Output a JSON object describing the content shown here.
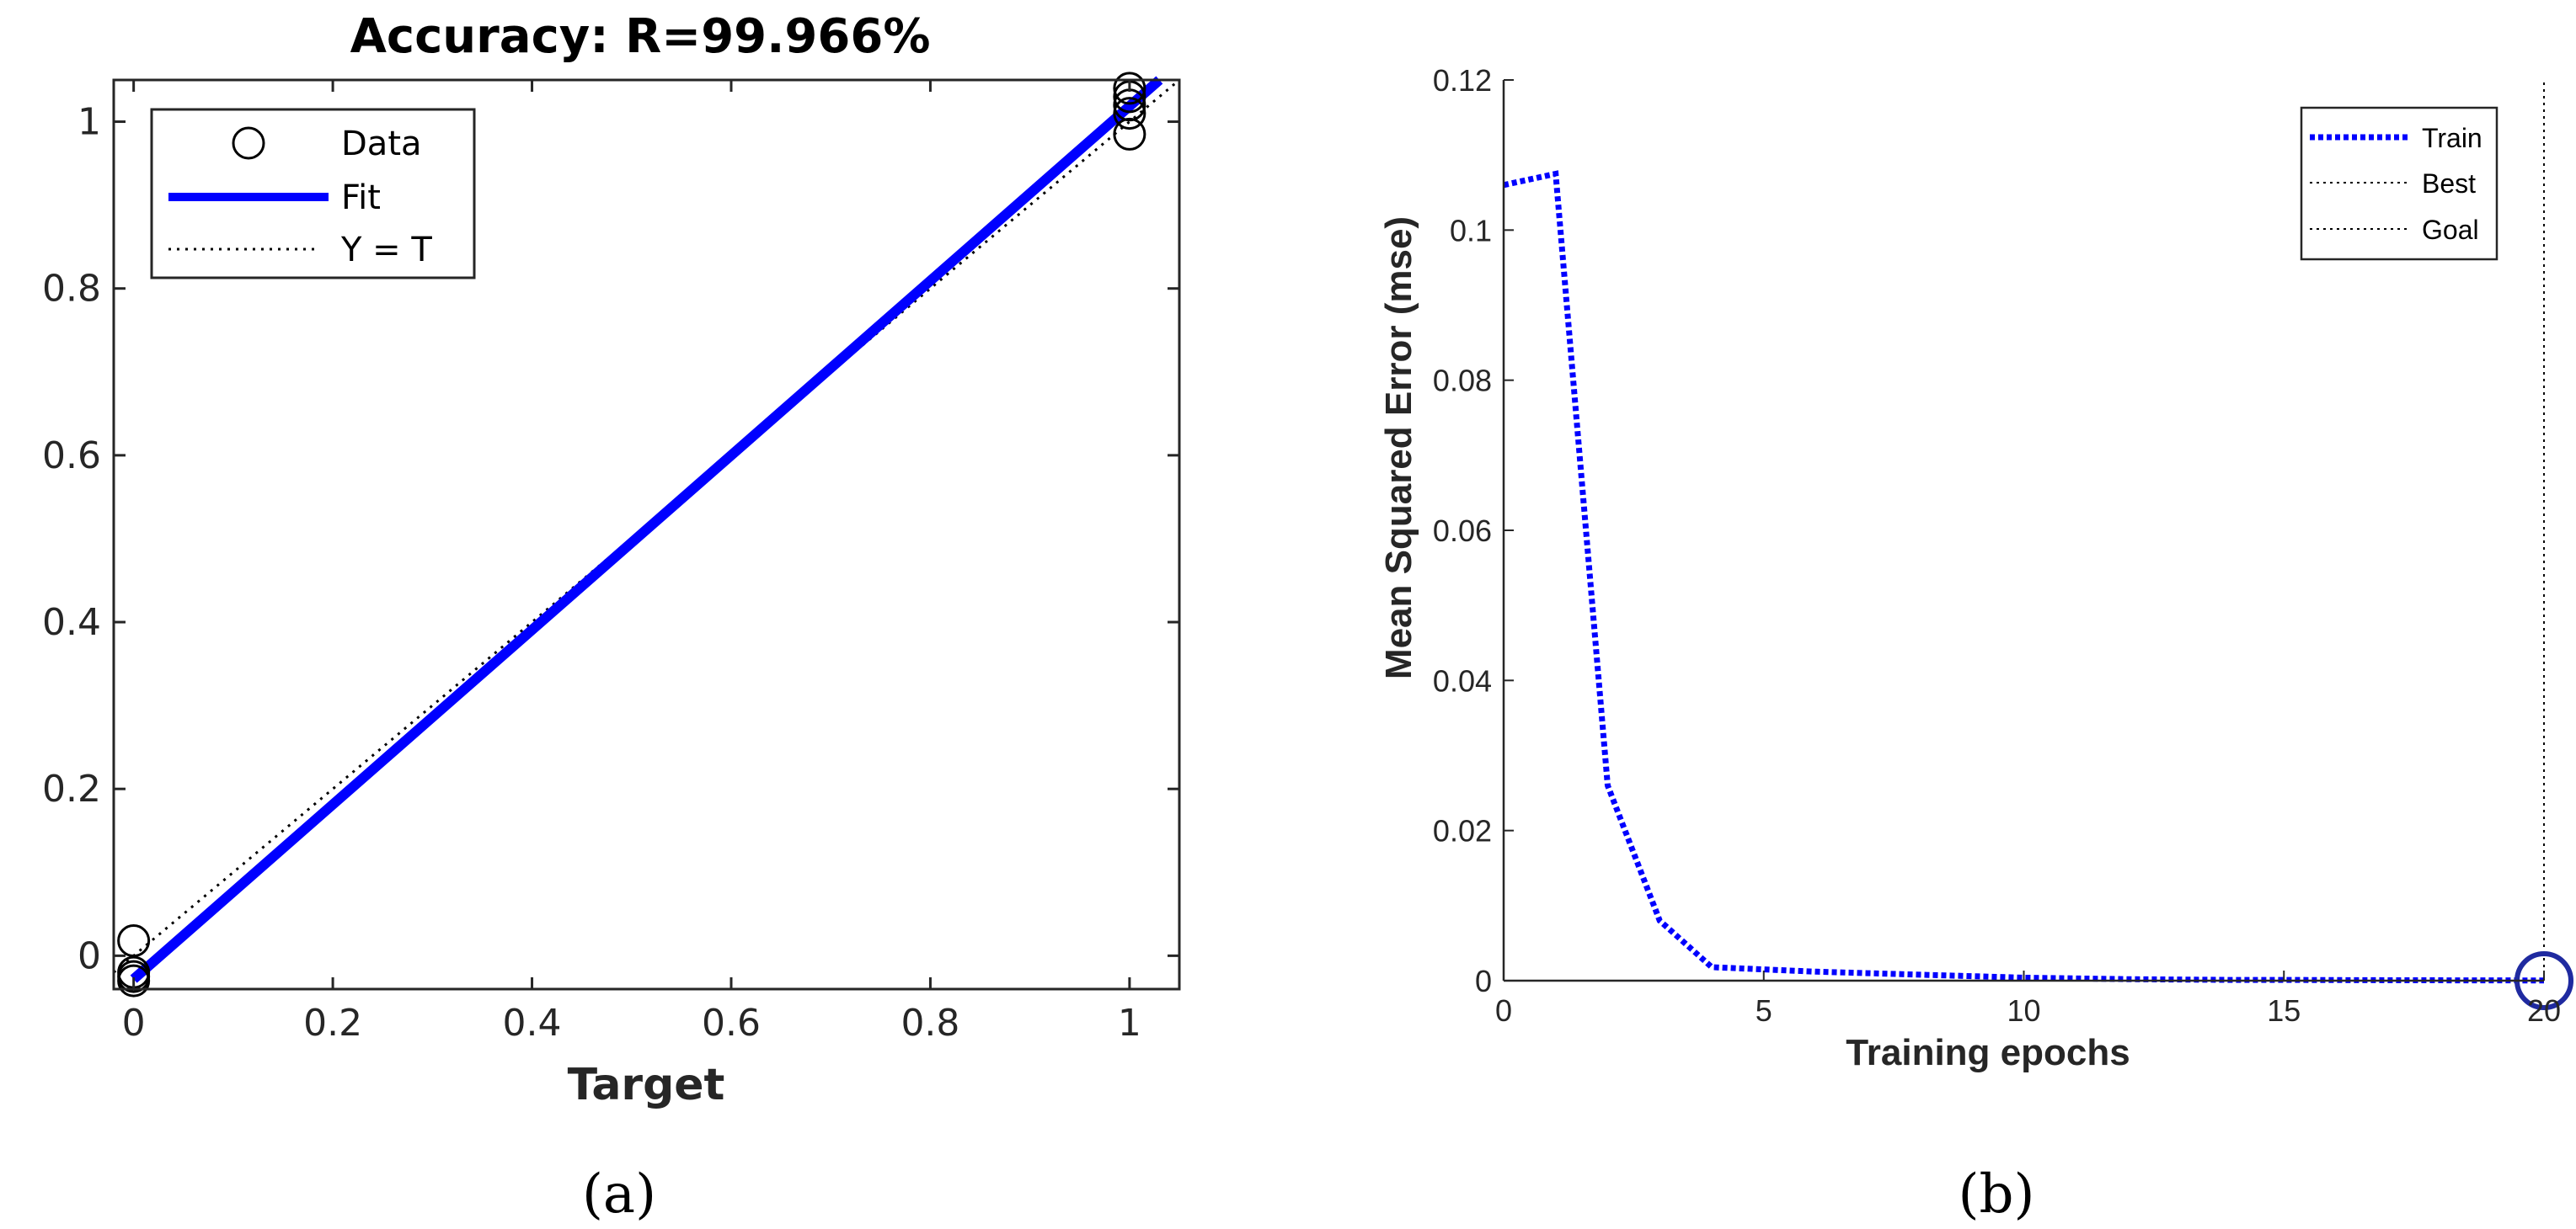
{
  "chart_data": [
    {
      "type": "scatter",
      "title": "Accuracy: R=99.966%",
      "xlabel": "Target",
      "ylabel": "",
      "xlim": [
        -0.02,
        1.05
      ],
      "ylim": [
        -0.04,
        1.05
      ],
      "xticks": [
        "0",
        "0.2",
        "0.4",
        "0.6",
        "0.8",
        "1"
      ],
      "yticks": [
        "0",
        "0.2",
        "0.4",
        "0.6",
        "0.8",
        "1"
      ],
      "legend": {
        "position": "top-left",
        "entries": [
          "Data",
          "Fit",
          "Y = T"
        ]
      },
      "series": [
        {
          "name": "Data",
          "style": "circle-marker",
          "points": [
            [
              0,
              0.018
            ],
            [
              0,
              -0.02
            ],
            [
              0,
              -0.025
            ],
            [
              0,
              -0.03
            ],
            [
              1,
              1.04
            ],
            [
              1,
              1.03
            ],
            [
              1,
              1.02
            ],
            [
              1,
              1.01
            ],
            [
              1,
              0.985
            ]
          ]
        },
        {
          "name": "Fit",
          "style": "line",
          "color": "#0000ff",
          "points": [
            [
              0,
              -0.028
            ],
            [
              1.03,
              1.05
            ]
          ]
        },
        {
          "name": "Y = T",
          "style": "dotted",
          "color": "#000000",
          "points": [
            [
              -0.02,
              -0.02
            ],
            [
              1.05,
              1.05
            ]
          ]
        }
      ],
      "panel_label": "(a)"
    },
    {
      "type": "line",
      "title": "",
      "xlabel": "Training epochs",
      "ylabel": "Mean Squared Error  (mse)",
      "xlim": [
        0,
        20
      ],
      "ylim": [
        0,
        0.12
      ],
      "xticks": [
        "0",
        "5",
        "10",
        "15",
        "20"
      ],
      "yticks": [
        "0",
        "0.02",
        "0.04",
        "0.06",
        "0.08",
        "0.1",
        "0.12"
      ],
      "legend": {
        "position": "top-right",
        "entries": [
          "Train",
          "Best",
          "Goal"
        ]
      },
      "series": [
        {
          "name": "Train",
          "style": "dotted",
          "color": "#0000ff",
          "x": [
            0,
            1,
            2,
            3,
            4,
            5,
            6,
            7,
            8,
            9,
            10,
            11,
            12,
            13,
            14,
            15,
            16,
            17,
            18,
            19,
            20
          ],
          "y": [
            0.106,
            0.1075,
            0.026,
            0.008,
            0.0018,
            0.0015,
            0.0012,
            0.001,
            0.0008,
            0.0006,
            0.0004,
            0.0003,
            0.0002,
            0.00015,
            0.0001,
            0.0001,
            8e-05,
            6e-05,
            5e-05,
            4e-05,
            3e-05
          ]
        },
        {
          "name": "Best",
          "style": "dotted",
          "color": "#000000",
          "x": [
            20,
            20
          ],
          "y": [
            0,
            0.12
          ]
        },
        {
          "name": "Goal",
          "style": "dotted",
          "color": "#000000",
          "x": [
            0,
            20
          ],
          "y": [
            0,
            0
          ]
        }
      ],
      "best_marker": {
        "x": 20,
        "y": 0,
        "color": "#1f2aa0"
      },
      "panel_label": "(b)"
    }
  ]
}
